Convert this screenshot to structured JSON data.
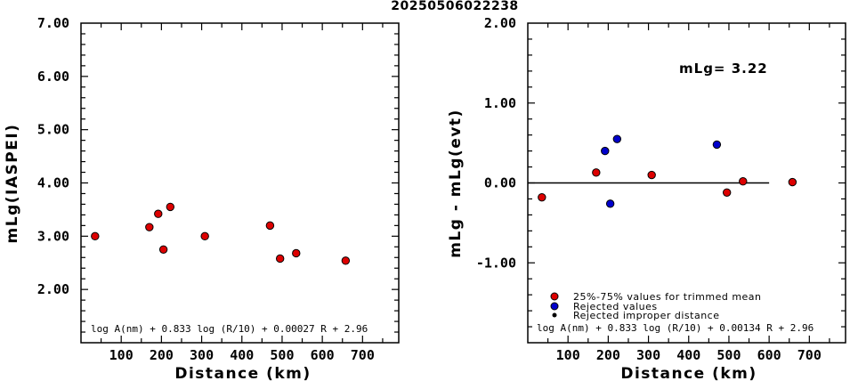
{
  "page": {
    "title": "20250506022238"
  },
  "chart_data": [
    {
      "type": "scatter",
      "xlabel": "Distance (km)",
      "ylabel": "mLg(IASPEI)",
      "xlim": [
        0,
        790
      ],
      "ylim": [
        1.0,
        7.0
      ],
      "x_ticks": [
        100,
        200,
        300,
        400,
        500,
        600,
        700
      ],
      "y_ticks": [
        2.0,
        3.0,
        4.0,
        5.0,
        6.0,
        7.0
      ],
      "y_tick_labels": [
        "2.00",
        "3.00",
        "4.00",
        "5.00",
        "6.00",
        "7.00"
      ],
      "formula": "log A(nm) + 0.833 log (R/10) + 0.00027 R + 2.96",
      "series": [
        {
          "color": "#dd0000",
          "points": [
            {
              "x": 35,
              "y": 3.0
            },
            {
              "x": 170,
              "y": 3.17
            },
            {
              "x": 192,
              "y": 3.42
            },
            {
              "x": 205,
              "y": 2.75
            },
            {
              "x": 222,
              "y": 3.55
            },
            {
              "x": 308,
              "y": 3.0
            },
            {
              "x": 470,
              "y": 3.2
            },
            {
              "x": 495,
              "y": 2.58
            },
            {
              "x": 535,
              "y": 2.68
            },
            {
              "x": 658,
              "y": 2.54
            }
          ]
        }
      ]
    },
    {
      "type": "scatter",
      "xlabel": "Distance (km)",
      "ylabel": "mLg - mLg(evt)",
      "xlim": [
        0,
        790
      ],
      "ylim": [
        -2.0,
        2.0
      ],
      "x_ticks": [
        100,
        200,
        300,
        400,
        500,
        600,
        700
      ],
      "y_ticks": [
        -1.0,
        0.0,
        1.0,
        2.0
      ],
      "y_tick_labels": [
        "-1.00",
        "0.00",
        "1.00",
        "2.00"
      ],
      "reference_line": {
        "y": 0.0,
        "x_from": 0,
        "x_to": 600
      },
      "magnitude_label": "mLg= 3.22",
      "formula": "log A(nm) + 0.833 log (R/10) + 0.00134 R  + 2.96",
      "legend": [
        {
          "label": "25%-75% values for trimmed mean",
          "color": "#dd0000",
          "marker": "circle"
        },
        {
          "label": "Rejected values",
          "color": "#0000cc",
          "marker": "circle"
        },
        {
          "label": "Rejected improper distance",
          "color": "#000000",
          "marker": "dot"
        }
      ],
      "series": [
        {
          "color": "#dd0000",
          "points": [
            {
              "x": 35,
              "y": -0.18
            },
            {
              "x": 170,
              "y": 0.13
            },
            {
              "x": 308,
              "y": 0.1
            },
            {
              "x": 495,
              "y": -0.12
            },
            {
              "x": 535,
              "y": 0.02
            },
            {
              "x": 658,
              "y": 0.01
            }
          ]
        },
        {
          "color": "#0000cc",
          "points": [
            {
              "x": 192,
              "y": 0.4
            },
            {
              "x": 205,
              "y": -0.26
            },
            {
              "x": 222,
              "y": 0.55
            },
            {
              "x": 470,
              "y": 0.48
            }
          ]
        }
      ]
    }
  ]
}
